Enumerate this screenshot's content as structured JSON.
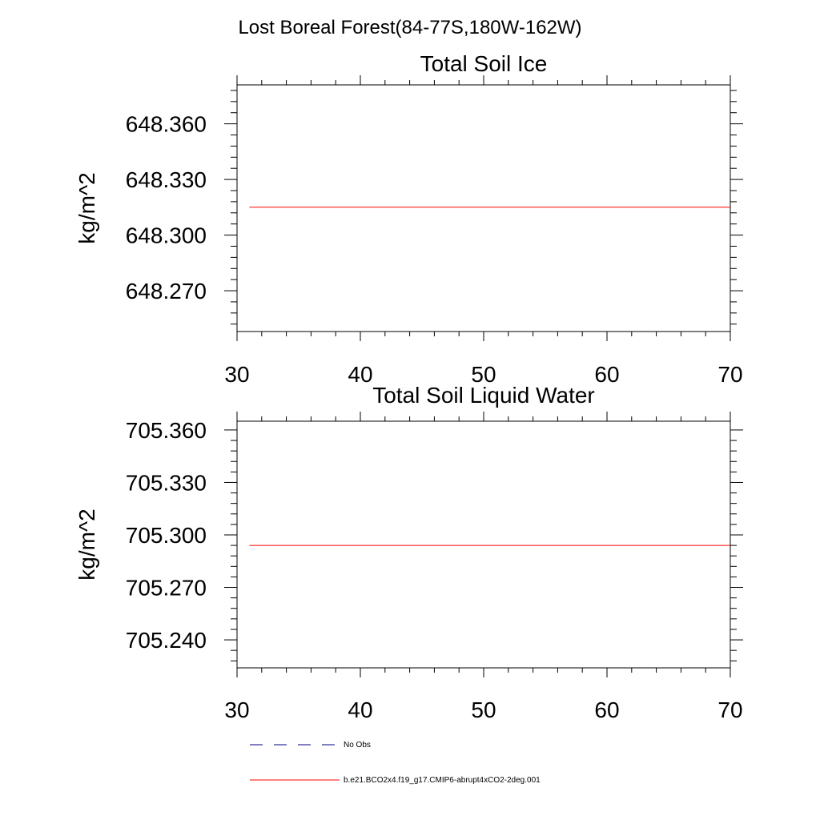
{
  "figure": {
    "title": "Lost Boreal Forest(84-77S,180W-162W)"
  },
  "chart_data": [
    {
      "type": "line",
      "title": "Total Soil Ice",
      "xlabel": "",
      "ylabel": "kg/m^2",
      "xlim": [
        30,
        70
      ],
      "ylim": [
        648.248,
        648.381
      ],
      "x_ticks": [
        30,
        40,
        50,
        60,
        70
      ],
      "x_tick_labels": [
        "30",
        "40",
        "50",
        "60",
        "70"
      ],
      "y_ticks": [
        648.27,
        648.3,
        648.33,
        648.36
      ],
      "y_tick_labels": [
        "648.270",
        "648.300",
        "648.330",
        "648.360"
      ],
      "grid": false,
      "series": [
        {
          "name": "b.e21.BCO2x4.f19_g17.CMIP6-abrupt4xCO2-2deg.001",
          "color": "#ff0000",
          "x": [
            31,
            40,
            50,
            60,
            70
          ],
          "values": [
            648.315,
            648.315,
            648.315,
            648.315,
            648.315
          ]
        }
      ]
    },
    {
      "type": "line",
      "title": "Total Soil Liquid Water",
      "xlabel": "",
      "ylabel": "kg/m^2",
      "xlim": [
        30,
        70
      ],
      "ylim": [
        705.224,
        705.365
      ],
      "x_ticks": [
        30,
        40,
        50,
        60,
        70
      ],
      "x_tick_labels": [
        "30",
        "40",
        "50",
        "60",
        "70"
      ],
      "y_ticks": [
        705.24,
        705.27,
        705.3,
        705.33,
        705.36
      ],
      "y_tick_labels": [
        "705.240",
        "705.270",
        "705.300",
        "705.330",
        "705.360"
      ],
      "grid": false,
      "series": [
        {
          "name": "b.e21.BCO2x4.f19_g17.CMIP6-abrupt4xCO2-2deg.001",
          "color": "#ff0000",
          "x": [
            31,
            40,
            50,
            60,
            70
          ],
          "values": [
            705.294,
            705.294,
            705.294,
            705.294,
            705.294
          ]
        }
      ]
    }
  ],
  "legend": {
    "placement": "bottom-left",
    "entries": [
      {
        "label": "No Obs",
        "color": "#000080",
        "style": "dashed"
      },
      {
        "label": "b.e21.BCO2x4.f19_g17.CMIP6-abrupt4xCO2-2deg.001",
        "color": "#ff0000",
        "style": "solid"
      }
    ]
  }
}
